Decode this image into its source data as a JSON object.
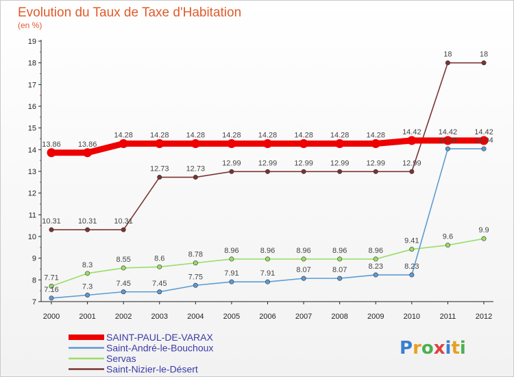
{
  "chart_data": {
    "type": "line",
    "title": "Evolution du Taux de Taxe d'Habitation",
    "subtitle": "(en %)",
    "categories": [
      "2000",
      "2001",
      "2002",
      "2003",
      "2004",
      "2005",
      "2006",
      "2007",
      "2008",
      "2009",
      "2010",
      "2011",
      "2012"
    ],
    "ylim": [
      7,
      19
    ],
    "yticks": [
      7,
      8,
      9,
      10,
      11,
      12,
      13,
      14,
      15,
      16,
      17,
      18,
      19
    ],
    "grid": false,
    "legend_position": "bottom-left",
    "series": [
      {
        "name": "SAINT-PAUL-DE-VARAX",
        "color": "#ee0000",
        "values": [
          13.86,
          13.86,
          14.28,
          14.28,
          14.28,
          14.28,
          14.28,
          14.28,
          14.28,
          14.28,
          14.42,
          14.42,
          14.42
        ]
      },
      {
        "name": "Saint-André-le-Bouchoux",
        "color": "#5b9bd5",
        "values": [
          7.16,
          7.3,
          7.45,
          7.45,
          7.75,
          7.91,
          7.91,
          8.07,
          8.07,
          8.23,
          8.23,
          14.04,
          14.04
        ]
      },
      {
        "name": "Servas",
        "color": "#99dd66",
        "values": [
          7.71,
          8.3,
          8.55,
          8.6,
          8.78,
          8.96,
          8.96,
          8.96,
          8.96,
          8.96,
          9.41,
          9.6,
          9.9
        ]
      },
      {
        "name": "Saint-Nizier-le-Désert",
        "color": "#7a3333",
        "values": [
          10.31,
          10.31,
          10.31,
          12.73,
          12.73,
          12.99,
          12.99,
          12.99,
          12.99,
          12.99,
          12.99,
          18,
          18
        ]
      }
    ]
  },
  "logo": {
    "text": "Proxiti",
    "colors": [
      "#3a7fd0",
      "#e8a020",
      "#4caf50",
      "#e04040",
      "#3a7fd0",
      "#e8a020",
      "#4caf50"
    ]
  }
}
